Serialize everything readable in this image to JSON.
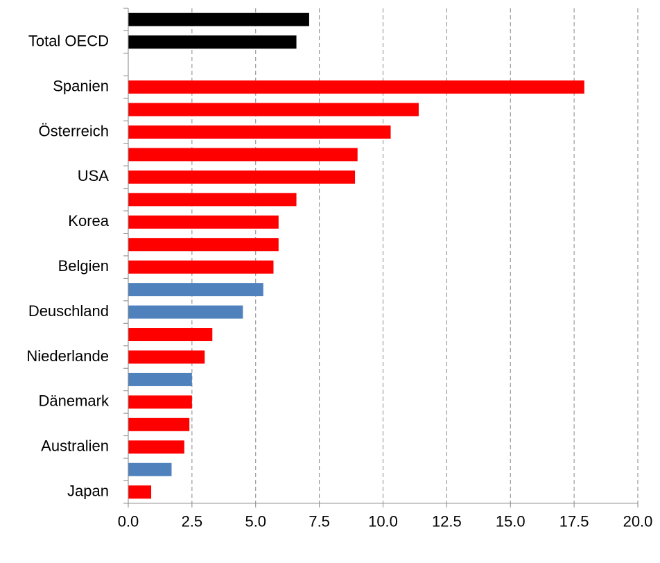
{
  "chart_data": {
    "type": "barh",
    "categories": [
      null,
      "Total OECD",
      null,
      "Spanien",
      null,
      "Österreich",
      null,
      "USA",
      null,
      "Korea",
      null,
      "Belgien",
      null,
      "Deuschland",
      null,
      "Niederlande",
      null,
      "Dänemark",
      null,
      "Australien",
      null,
      "Japan"
    ],
    "values": [
      7.1,
      6.6,
      null,
      17.9,
      11.4,
      10.3,
      9.0,
      8.9,
      6.6,
      5.9,
      5.9,
      5.7,
      5.3,
      4.5,
      3.3,
      3.0,
      2.5,
      2.5,
      2.4,
      2.2,
      1.7,
      0.9
    ],
    "colors": [
      "#000000",
      "#000000",
      "#000000",
      "#ff0000",
      "#ff0000",
      "#ff0000",
      "#ff0000",
      "#ff0000",
      "#ff0000",
      "#ff0000",
      "#ff0000",
      "#ff0000",
      "#4f81bd",
      "#4f81bd",
      "#ff0000",
      "#ff0000",
      "#4f81bd",
      "#ff0000",
      "#ff0000",
      "#ff0000",
      "#4f81bd",
      "#ff0000"
    ],
    "xlim": [
      0,
      20
    ],
    "xticks": [
      {
        "value": 0,
        "label": "0.0"
      },
      2.5,
      {
        "value": 5,
        "label": "5.0"
      },
      7.5,
      {
        "value": 10,
        "label": "10.0"
      },
      12.5,
      {
        "value": 15,
        "label": "15.0"
      },
      17.5,
      {
        "value": 20,
        "label": "20.0"
      }
    ],
    "grid": true
  }
}
